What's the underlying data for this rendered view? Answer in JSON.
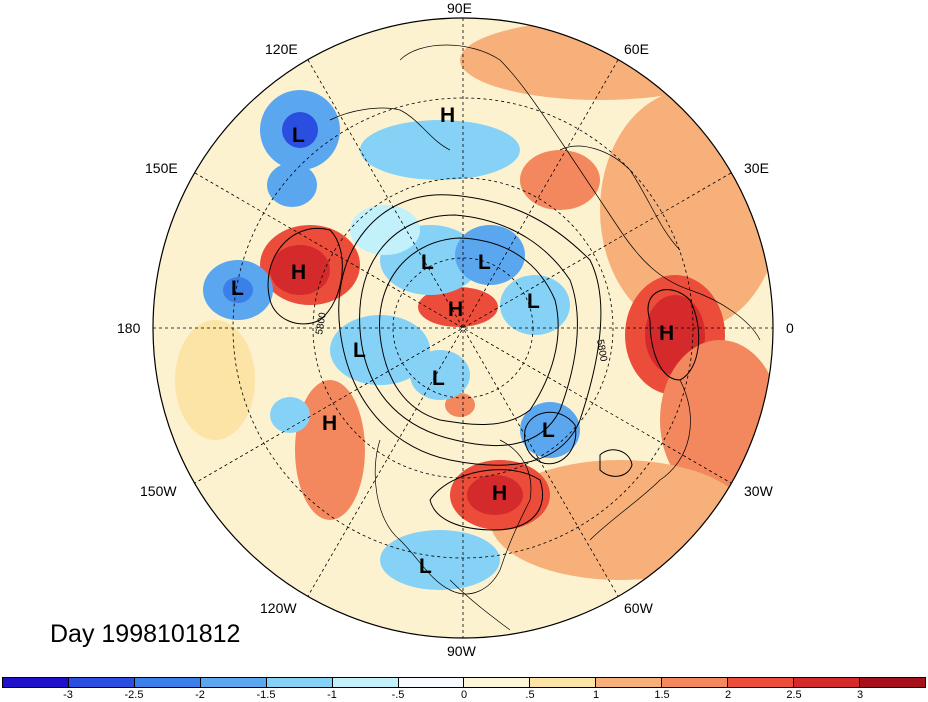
{
  "title": "Day 1998101812",
  "longitude_labels": [
    {
      "text": "90E"
    },
    {
      "text": "60E"
    },
    {
      "text": "120E"
    },
    {
      "text": "150E"
    },
    {
      "text": "30E"
    },
    {
      "text": "180"
    },
    {
      "text": "0"
    },
    {
      "text": "150W"
    },
    {
      "text": "30W"
    },
    {
      "text": "120W"
    },
    {
      "text": "60W"
    },
    {
      "text": "90W"
    }
  ],
  "pressure_centers": [
    {
      "type": "H"
    },
    {
      "type": "L"
    },
    {
      "type": "L"
    },
    {
      "type": "H"
    },
    {
      "type": "L"
    },
    {
      "type": "L"
    },
    {
      "type": "H"
    },
    {
      "type": "L"
    },
    {
      "type": "L"
    },
    {
      "type": "H"
    },
    {
      "type": "L"
    },
    {
      "type": "H"
    },
    {
      "type": "L"
    },
    {
      "type": "H"
    },
    {
      "type": "L"
    }
  ],
  "contour_labels": [
    "5800",
    "5800"
  ],
  "colorbar": {
    "colors": [
      "#1e11c9",
      "#2a4fe0",
      "#3b7fe8",
      "#5aa7ef",
      "#86d2f7",
      "#c2f0fb",
      "#f7fbff",
      "#fdf7d7",
      "#fbe4a5",
      "#f7b07a",
      "#f3875d",
      "#ec4c3a",
      "#d42a2c",
      "#a5101b"
    ],
    "labels": [
      "-3",
      "-2.5",
      "-2",
      "-1.5",
      "-1",
      "-.5",
      "0",
      ".5",
      "1",
      "1.5",
      "2",
      "2.5",
      "3"
    ]
  }
}
